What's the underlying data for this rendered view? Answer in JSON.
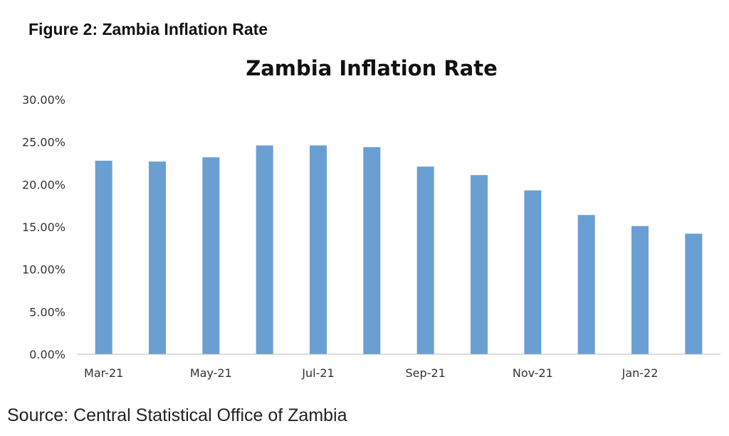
{
  "figure_label": "Figure 2: Zambia Inflation Rate",
  "source": "Source: Central Statistical Office of Zambia",
  "chart_data": {
    "type": "bar",
    "title": "Zambia Inflation Rate",
    "xlabel": "",
    "ylabel": "",
    "categories": [
      "Mar-21",
      "Apr-21",
      "May-21",
      "Jun-21",
      "Jul-21",
      "Aug-21",
      "Sep-21",
      "Oct-21",
      "Nov-21",
      "Dec-21",
      "Jan-22",
      "Feb-22"
    ],
    "shown_x_labels": [
      "Mar-21",
      "",
      "May-21",
      "",
      "Jul-21",
      "",
      "Sep-21",
      "",
      "Nov-21",
      "",
      "Jan-22",
      ""
    ],
    "values": [
      22.8,
      22.7,
      23.2,
      24.6,
      24.6,
      24.4,
      22.1,
      21.1,
      19.3,
      16.4,
      15.1,
      14.2
    ],
    "y_ticks": [
      "0.00%",
      "5.00%",
      "10.00%",
      "15.00%",
      "20.00%",
      "25.00%",
      "30.00%"
    ],
    "ylim": [
      0,
      30
    ],
    "grid": false,
    "bar_color": "#6a9fd3"
  }
}
